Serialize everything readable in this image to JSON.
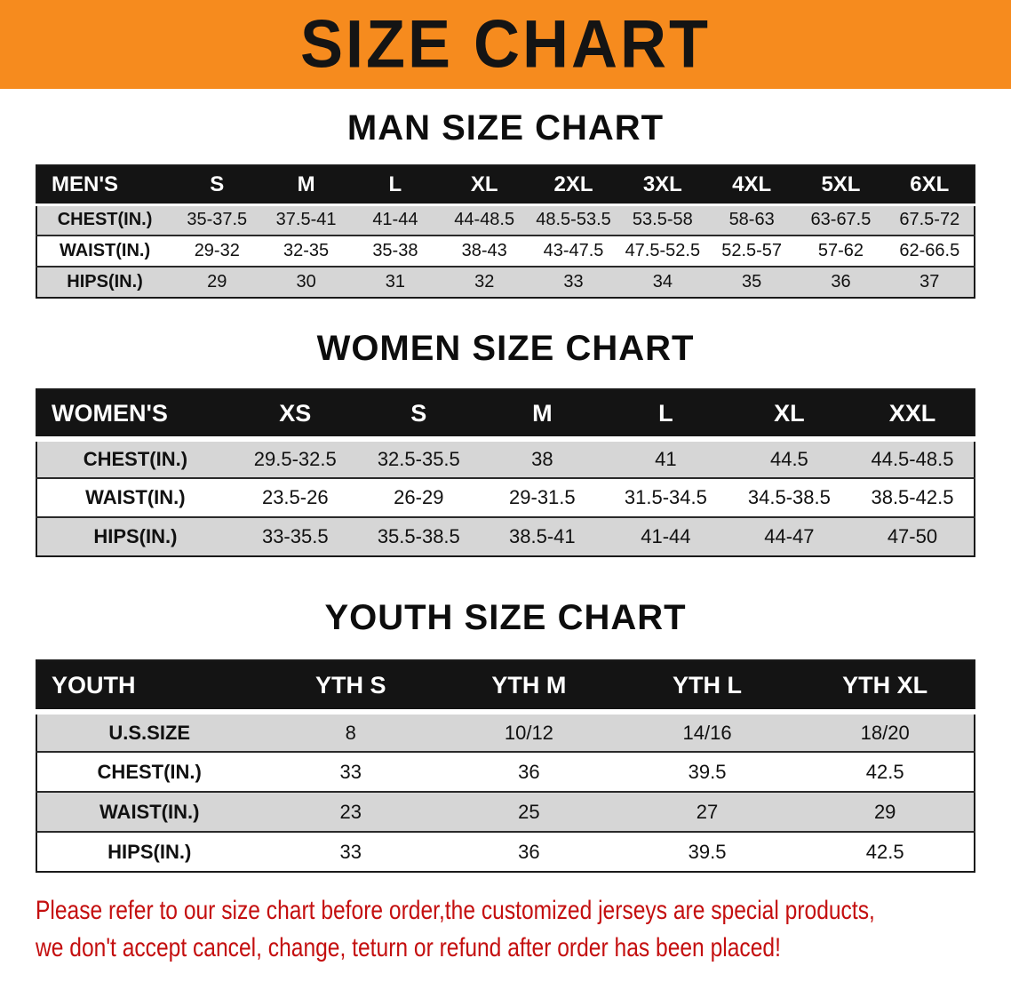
{
  "banner": {
    "title": "SIZE CHART"
  },
  "colors": {
    "banner_bg": "#f68b1e",
    "banner_text": "#141414",
    "table_header_bg": "#141414",
    "table_header_text": "#ffffff",
    "stripe_bg": "#d6d6d6",
    "disclaimer_text": "#c40f0f"
  },
  "sections": [
    {
      "id": "men",
      "title": "MAN SIZE CHART",
      "table": {
        "header": [
          "MEN'S",
          "S",
          "M",
          "L",
          "XL",
          "2XL",
          "3XL",
          "4XL",
          "5XL",
          "6XL"
        ],
        "rows": [
          {
            "label": "CHEST(IN.)",
            "values": [
              "35-37.5",
              "37.5-41",
              "41-44",
              "44-48.5",
              "48.5-53.5",
              "53.5-58",
              "58-63",
              "63-67.5",
              "67.5-72"
            ]
          },
          {
            "label": "WAIST(IN.)",
            "values": [
              "29-32",
              "32-35",
              "35-38",
              "38-43",
              "43-47.5",
              "47.5-52.5",
              "52.5-57",
              "57-62",
              "62-66.5"
            ]
          },
          {
            "label": "HIPS(IN.)",
            "values": [
              "29",
              "30",
              "31",
              "32",
              "33",
              "34",
              "35",
              "36",
              "37"
            ]
          }
        ]
      }
    },
    {
      "id": "women",
      "title": "WOMEN SIZE CHART",
      "table": {
        "header": [
          "WOMEN'S",
          "XS",
          "S",
          "M",
          "L",
          "XL",
          "XXL"
        ],
        "rows": [
          {
            "label": "CHEST(IN.)",
            "values": [
              "29.5-32.5",
              "32.5-35.5",
              "38",
              "41",
              "44.5",
              "44.5-48.5"
            ]
          },
          {
            "label": "WAIST(IN.)",
            "values": [
              "23.5-26",
              "26-29",
              "29-31.5",
              "31.5-34.5",
              "34.5-38.5",
              "38.5-42.5"
            ]
          },
          {
            "label": "HIPS(IN.)",
            "values": [
              "33-35.5",
              "35.5-38.5",
              "38.5-41",
              "41-44",
              "44-47",
              "47-50"
            ]
          }
        ]
      }
    },
    {
      "id": "youth",
      "title": "YOUTH SIZE CHART",
      "table": {
        "header": [
          "YOUTH",
          "YTH S",
          "YTH M",
          "YTH L",
          "YTH XL"
        ],
        "rows": [
          {
            "label": "U.S.SIZE",
            "values": [
              "8",
              "10/12",
              "14/16",
              "18/20"
            ]
          },
          {
            "label": "CHEST(IN.)",
            "values": [
              "33",
              "36",
              "39.5",
              "42.5"
            ]
          },
          {
            "label": "WAIST(IN.)",
            "values": [
              "23",
              "25",
              "27",
              "29"
            ]
          },
          {
            "label": "HIPS(IN.)",
            "values": [
              "33",
              "36",
              "39.5",
              "42.5"
            ]
          }
        ]
      }
    }
  ],
  "disclaimer": {
    "lines": [
      "Please refer to our size chart before order,the customized jerseys are special products,",
      "we don't accept cancel, change, teturn or refund after order has been placed!"
    ]
  }
}
